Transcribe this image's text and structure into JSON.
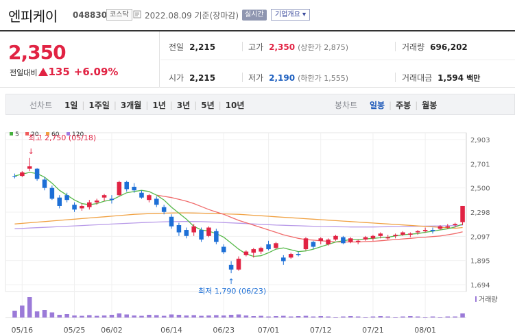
{
  "header": {
    "name": "엔피케이",
    "code": "048830",
    "market": "코스닥",
    "date": "2022.08.09 기준(장마감)",
    "realtime": "실시간",
    "overview": "기업개요"
  },
  "quote": {
    "price": "2,350",
    "change_label": "전일대비",
    "change_value": "135",
    "change_pct": "+6.09%",
    "prev_label": "전일",
    "prev": "2,215",
    "high_label": "고가",
    "high": "2,350",
    "upper_limit": "(상한가 2,875)",
    "volume_label": "거래량",
    "volume": "696,202",
    "open_label": "시가",
    "open": "2,215",
    "low_label": "저가",
    "low": "2,190",
    "lower_limit": "(하한가 1,555)",
    "amount_label": "거래대금",
    "amount": "1,594",
    "amount_unit": "백만"
  },
  "toolbar": {
    "line_label": "선차트",
    "periods": [
      "1일",
      "1주일",
      "3개월",
      "1년",
      "3년",
      "5년",
      "10년"
    ],
    "candle_label": "봉차트",
    "candles": [
      "일봉",
      "주봉",
      "월봉"
    ],
    "active_candle": "일봉"
  },
  "chart_data": {
    "type": "candlestick",
    "y_ticks": [
      "2,903",
      "2,701",
      "2,500",
      "2,298",
      "2,097",
      "1,895",
      "1,694"
    ],
    "ylim": [
      1694,
      2903
    ],
    "x_labels": [
      "05/16",
      "05/25",
      "06/02",
      "06/14",
      "06/23",
      "07/01",
      "07/12",
      "07/21",
      "08/01"
    ],
    "legend": [
      {
        "name": "5",
        "color": "#44b03d"
      },
      {
        "name": "20",
        "color": "#f05a5a"
      },
      {
        "name": "60",
        "color": "#f0a040"
      },
      {
        "name": "120",
        "color": "#a07ae0"
      }
    ],
    "high_note": "최고 2,750 (05/18)",
    "low_note": "최저 1,790 (06/23)",
    "volume_label": "거래량",
    "up_color": "#e12343",
    "down_color": "#1d6fd6",
    "candles": [
      [
        2600,
        2620,
        2580,
        2595
      ],
      [
        2600,
        2640,
        2590,
        2630
      ],
      [
        2660,
        2750,
        2640,
        2680
      ],
      [
        2660,
        2665,
        2560,
        2575
      ],
      [
        2570,
        2590,
        2480,
        2500
      ],
      [
        2500,
        2520,
        2400,
        2410
      ],
      [
        2420,
        2440,
        2330,
        2350
      ],
      [
        2440,
        2460,
        2380,
        2400
      ],
      [
        2360,
        2380,
        2300,
        2320
      ],
      [
        2330,
        2370,
        2310,
        2350
      ],
      [
        2340,
        2400,
        2320,
        2380
      ],
      [
        2380,
        2410,
        2360,
        2395
      ],
      [
        2420,
        2450,
        2390,
        2440
      ],
      [
        2410,
        2440,
        2370,
        2400
      ],
      [
        2440,
        2560,
        2430,
        2550
      ],
      [
        2550,
        2560,
        2470,
        2490
      ],
      [
        2510,
        2540,
        2460,
        2480
      ],
      [
        2460,
        2480,
        2410,
        2420
      ],
      [
        2400,
        2450,
        2380,
        2440
      ],
      [
        2410,
        2430,
        2340,
        2360
      ],
      [
        2340,
        2360,
        2280,
        2300
      ],
      [
        2260,
        2280,
        2160,
        2180
      ],
      [
        2190,
        2210,
        2100,
        2130
      ],
      [
        2150,
        2170,
        2080,
        2100
      ],
      [
        2130,
        2200,
        2100,
        2180
      ],
      [
        2150,
        2170,
        2050,
        2070
      ],
      [
        2100,
        2180,
        2090,
        2170
      ],
      [
        2140,
        2160,
        2030,
        2050
      ],
      [
        2010,
        2030,
        1950,
        1965
      ],
      [
        1860,
        1890,
        1790,
        1820
      ],
      [
        1820,
        1930,
        1810,
        1910
      ],
      [
        1940,
        1980,
        1930,
        1970
      ],
      [
        1960,
        2000,
        1920,
        1990
      ],
      [
        1970,
        2010,
        1950,
        2000
      ],
      [
        2030,
        2060,
        1980,
        1990
      ],
      [
        2000,
        2050,
        1990,
        2040
      ],
      [
        1920,
        1940,
        1860,
        1890
      ],
      [
        1920,
        1960,
        1910,
        1950
      ],
      [
        1950,
        1970,
        1930,
        1940
      ],
      [
        1990,
        2090,
        1980,
        2080
      ],
      [
        2050,
        2060,
        1990,
        2010
      ],
      [
        2060,
        2090,
        2030,
        2080
      ],
      [
        2030,
        2080,
        2020,
        2070
      ],
      [
        2070,
        2110,
        2060,
        2100
      ],
      [
        2090,
        2100,
        2030,
        2040
      ],
      [
        2050,
        2090,
        2040,
        2080
      ],
      [
        2050,
        2070,
        2030,
        2060
      ],
      [
        2070,
        2100,
        2060,
        2090
      ],
      [
        2080,
        2110,
        2060,
        2100
      ],
      [
        2100,
        2130,
        2080,
        2120
      ],
      [
        2080,
        2110,
        2070,
        2090
      ],
      [
        2100,
        2120,
        2080,
        2110
      ],
      [
        2110,
        2140,
        2100,
        2130
      ],
      [
        2110,
        2130,
        2090,
        2120
      ],
      [
        2130,
        2150,
        2110,
        2140
      ],
      [
        2140,
        2170,
        2130,
        2150
      ],
      [
        2150,
        2170,
        2120,
        2140
      ],
      [
        2160,
        2190,
        2150,
        2180
      ],
      [
        2170,
        2200,
        2160,
        2180
      ],
      [
        2190,
        2210,
        2170,
        2200
      ],
      [
        2215,
        2350,
        2190,
        2350
      ]
    ],
    "ma5": [
      2600,
      2615,
      2630,
      2620,
      2590,
      2540,
      2480,
      2440,
      2400,
      2370,
      2360,
      2370,
      2390,
      2400,
      2430,
      2460,
      2470,
      2480,
      2470,
      2440,
      2400,
      2340,
      2290,
      2240,
      2180,
      2150,
      2140,
      2120,
      2090,
      2040,
      1990,
      1950,
      1930,
      1935,
      1960,
      1990,
      2000,
      1985,
      1970,
      1975,
      1990,
      2010,
      2030,
      2050,
      2060,
      2070,
      2070,
      2075,
      2080,
      2085,
      2090,
      2100,
      2110,
      2115,
      2120,
      2130,
      2140,
      2150,
      2160,
      2175,
      2200
    ],
    "ma20": [
      null,
      null,
      null,
      null,
      null,
      null,
      null,
      null,
      null,
      null,
      null,
      null,
      null,
      null,
      null,
      null,
      null,
      null,
      null,
      2440,
      2430,
      2420,
      2405,
      2390,
      2370,
      2345,
      2320,
      2300,
      2280,
      2255,
      2230,
      2210,
      2190,
      2170,
      2150,
      2130,
      2110,
      2095,
      2080,
      2070,
      2065,
      2060,
      2055,
      2050,
      2050,
      2050,
      2050,
      2052,
      2055,
      2060,
      2065,
      2070,
      2075,
      2080,
      2085,
      2090,
      2095,
      2100,
      2110,
      2120,
      2135
    ],
    "ma60": [
      2200,
      2205,
      2210,
      2215,
      2220,
      2225,
      2230,
      2235,
      2240,
      2245,
      2250,
      2255,
      2260,
      2265,
      2270,
      2275,
      2280,
      2283,
      2286,
      2288,
      2290,
      2291,
      2292,
      2292,
      2291,
      2290,
      2288,
      2286,
      2284,
      2282,
      2280,
      2276,
      2272,
      2268,
      2264,
      2260,
      2256,
      2252,
      2248,
      2244,
      2240,
      2236,
      2232,
      2228,
      2224,
      2220,
      2216,
      2212,
      2208,
      2204,
      2200,
      2196,
      2192,
      2188,
      2184,
      2180,
      2176,
      2172,
      2168,
      2164,
      2170
    ],
    "ma120": [
      2160,
      2163,
      2166,
      2169,
      2172,
      2175,
      2178,
      2181,
      2184,
      2187,
      2190,
      2193,
      2196,
      2199,
      2202,
      2205,
      2208,
      2211,
      2214,
      2216,
      2218,
      2219,
      2220,
      2221,
      2220,
      2219,
      2217,
      2215,
      2212,
      2209,
      2206,
      2203,
      2200,
      2197,
      2194,
      2191,
      2189,
      2187,
      2185,
      2183,
      2181,
      2179,
      2178,
      2177,
      2176,
      2175,
      2175,
      2175,
      2175,
      2176,
      2177,
      2178,
      2179,
      2180,
      2181,
      2182,
      2183,
      2184,
      2185,
      2186,
      2190
    ],
    "volumes": [
      20,
      35,
      60,
      18,
      22,
      15,
      8,
      10,
      6,
      5,
      7,
      5,
      6,
      8,
      12,
      9,
      6,
      5,
      8,
      7,
      5,
      9,
      8,
      6,
      7,
      5,
      6,
      7,
      6,
      8,
      9,
      6,
      4,
      5,
      3,
      4,
      5,
      3,
      4,
      5,
      3,
      4,
      3,
      2,
      3,
      4,
      3,
      2,
      3,
      4,
      3,
      2,
      3,
      4,
      3,
      2,
      3,
      2,
      3,
      3,
      12
    ]
  }
}
